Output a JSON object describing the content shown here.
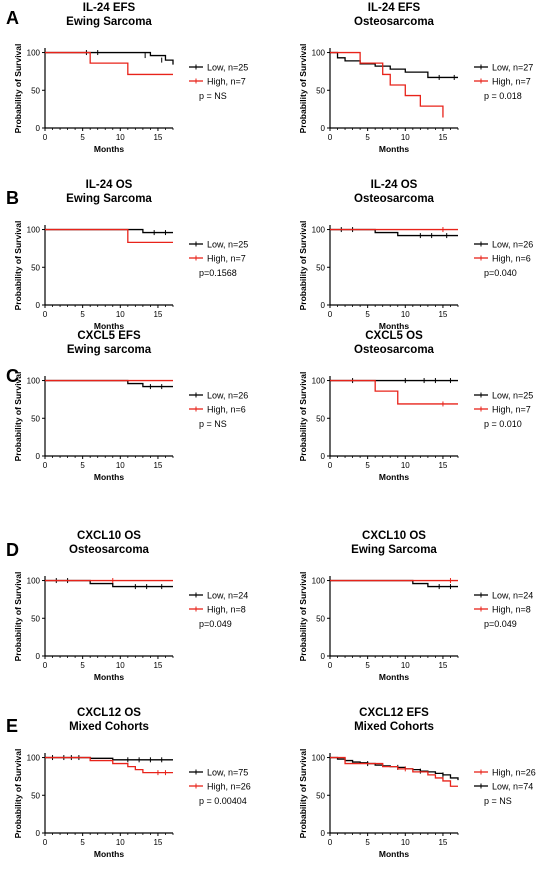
{
  "colors": {
    "low": "#000000",
    "high": "#e8231a",
    "axis": "#000000"
  },
  "chart_data": [
    {
      "panel_letter": "A",
      "type": "line",
      "title": "IL-24 EFS",
      "subtitle": "Ewing Sarcoma",
      "xlabel": "Months",
      "ylabel": "Probability of Survival",
      "xlim": [
        0,
        17
      ],
      "ylim": [
        0,
        110
      ],
      "xticks": [
        "0",
        "5",
        "10",
        "15"
      ],
      "yticks": [
        "0",
        "50",
        "100"
      ],
      "legend_order": [
        "low",
        "high"
      ],
      "pvalue": "p = NS",
      "series": [
        {
          "key": "low",
          "name": "Low, n=25",
          "x": [
            0,
            13,
            14,
            15,
            16,
            17
          ],
          "y": [
            100,
            100,
            96,
            96,
            90,
            84
          ],
          "censor": [
            [
              5.5,
              100
            ],
            [
              7,
              100
            ],
            [
              13.3,
              96
            ],
            [
              15.5,
              90
            ]
          ]
        },
        {
          "key": "high",
          "name": "High, n=7",
          "x": [
            0,
            6,
            11,
            17
          ],
          "y": [
            100,
            86,
            71,
            71
          ],
          "censor": []
        }
      ]
    },
    {
      "panel_letter": "",
      "type": "line",
      "title": "IL-24 EFS",
      "subtitle": "Osteosarcoma",
      "xlabel": "Months",
      "ylabel": "Probability of Survival",
      "xlim": [
        0,
        17
      ],
      "ylim": [
        0,
        110
      ],
      "xticks": [
        "0",
        "5",
        "10",
        "15"
      ],
      "yticks": [
        "0",
        "50",
        "100"
      ],
      "legend_order": [
        "low",
        "high"
      ],
      "pvalue": "p = 0.018",
      "series": [
        {
          "key": "low",
          "name": "Low, n=27",
          "x": [
            0,
            1,
            2,
            4,
            6,
            8,
            10,
            13,
            17
          ],
          "y": [
            100,
            93,
            89,
            85,
            82,
            78,
            74,
            67,
            67
          ],
          "censor": [
            [
              14.5,
              67
            ],
            [
              16.5,
              67
            ]
          ]
        },
        {
          "key": "high",
          "name": "High, n=7",
          "x": [
            0,
            4,
            6,
            7,
            8,
            10,
            12,
            15
          ],
          "y": [
            100,
            86,
            86,
            71,
            57,
            43,
            29,
            14
          ],
          "censor": []
        }
      ]
    },
    {
      "panel_letter": "B",
      "type": "line",
      "title": "IL-24 OS",
      "subtitle": "Ewing  Sarcoma",
      "xlabel": "Months",
      "ylabel": "Probability of Survival",
      "xlim": [
        0,
        17
      ],
      "ylim": [
        0,
        110
      ],
      "xticks": [
        "0",
        "5",
        "10",
        "15"
      ],
      "yticks": [
        "0",
        "50",
        "100"
      ],
      "legend_order": [
        "low",
        "high"
      ],
      "pvalue": "p=0.1568",
      "series": [
        {
          "key": "low",
          "name": "Low, n=25",
          "x": [
            0,
            13,
            17
          ],
          "y": [
            100,
            96,
            96
          ],
          "censor": [
            [
              14.5,
              96
            ],
            [
              16,
              96
            ]
          ]
        },
        {
          "key": "high",
          "name": "High, n=7",
          "x": [
            0,
            11,
            17
          ],
          "y": [
            100,
            83,
            83
          ],
          "censor": []
        }
      ]
    },
    {
      "panel_letter": "",
      "type": "line",
      "title": "IL-24 OS",
      "subtitle": "Osteosarcoma",
      "xlabel": "Months",
      "ylabel": "Probability of Survival",
      "xlim": [
        0,
        17
      ],
      "ylim": [
        0,
        110
      ],
      "xticks": [
        "0",
        "5",
        "10",
        "15"
      ],
      "yticks": [
        "0",
        "50",
        "100"
      ],
      "legend_order": [
        "low",
        "high"
      ],
      "pvalue": "p=0.040",
      "series": [
        {
          "key": "low",
          "name": "Low, n=26",
          "x": [
            0,
            6,
            9,
            17
          ],
          "y": [
            100,
            96,
            92,
            92
          ],
          "censor": [
            [
              1.5,
              100
            ],
            [
              3,
              100
            ],
            [
              12,
              92
            ],
            [
              13.5,
              92
            ],
            [
              15.5,
              92
            ]
          ]
        },
        {
          "key": "high",
          "name": "High, n=6",
          "x": [
            0,
            17
          ],
          "y": [
            100,
            100
          ],
          "censor": [
            [
              15,
              100
            ]
          ]
        }
      ]
    },
    {
      "panel_letter": "C",
      "type": "line",
      "title": "CXCL5 EFS",
      "subtitle": "Ewing sarcoma",
      "xlabel": "Months",
      "ylabel": "Probability of Survival",
      "xlim": [
        0,
        17
      ],
      "ylim": [
        0,
        110
      ],
      "xticks": [
        "0",
        "5",
        "10",
        "15"
      ],
      "yticks": [
        "0",
        "50",
        "100"
      ],
      "legend_order": [
        "low",
        "high"
      ],
      "pvalue": "p = NS",
      "series": [
        {
          "key": "low",
          "name": "Low, n=26",
          "x": [
            0,
            11,
            13,
            17
          ],
          "y": [
            100,
            96,
            92,
            92
          ],
          "censor": [
            [
              14,
              92
            ],
            [
              15.5,
              92
            ]
          ]
        },
        {
          "key": "high",
          "name": "High, n=6",
          "x": [
            0,
            17
          ],
          "y": [
            100,
            100
          ],
          "censor": []
        }
      ]
    },
    {
      "panel_letter": "",
      "type": "line",
      "title": "CXCL5 OS",
      "subtitle": "Osteosarcoma",
      "xlabel": "Months",
      "ylabel": "Probability of Survival",
      "xlim": [
        0,
        17
      ],
      "ylim": [
        0,
        110
      ],
      "xticks": [
        "0",
        "5",
        "10",
        "15"
      ],
      "yticks": [
        "0",
        "50",
        "100"
      ],
      "legend_order": [
        "low",
        "high"
      ],
      "pvalue": "p = 0.010",
      "series": [
        {
          "key": "low",
          "name": "Low, n=25",
          "x": [
            0,
            17
          ],
          "y": [
            100,
            100
          ],
          "censor": [
            [
              3,
              100
            ],
            [
              10,
              100
            ],
            [
              12.5,
              100
            ],
            [
              14,
              100
            ],
            [
              16,
              100
            ]
          ]
        },
        {
          "key": "high",
          "name": "High, n=7",
          "x": [
            0,
            6,
            9,
            17
          ],
          "y": [
            100,
            86,
            69,
            69
          ],
          "censor": [
            [
              15,
              69
            ]
          ]
        }
      ]
    },
    {
      "panel_letter": "D",
      "type": "line",
      "title": "CXCL10 OS",
      "subtitle": "Osteosarcoma",
      "xlabel": "Months",
      "ylabel": "Probability of Survival",
      "xlim": [
        0,
        17
      ],
      "ylim": [
        0,
        110
      ],
      "xticks": [
        "0",
        "5",
        "10",
        "15"
      ],
      "yticks": [
        "0",
        "50",
        "100"
      ],
      "legend_order": [
        "low",
        "high"
      ],
      "pvalue": "p=0.049",
      "series": [
        {
          "key": "low",
          "name": "Low, n=24",
          "x": [
            0,
            6,
            9,
            17
          ],
          "y": [
            100,
            96,
            92,
            92
          ],
          "censor": [
            [
              1.5,
              100
            ],
            [
              3,
              100
            ],
            [
              12,
              92
            ],
            [
              13.5,
              92
            ],
            [
              15.5,
              92
            ]
          ]
        },
        {
          "key": "high",
          "name": "High, n=8",
          "x": [
            0,
            17
          ],
          "y": [
            100,
            100
          ],
          "censor": [
            [
              9,
              100
            ]
          ]
        }
      ]
    },
    {
      "panel_letter": "",
      "type": "line",
      "title": "CXCL10 OS",
      "subtitle": "Ewing Sarcoma",
      "xlabel": "Months",
      "ylabel": "Probability of Survival",
      "xlim": [
        0,
        17
      ],
      "ylim": [
        0,
        110
      ],
      "xticks": [
        "0",
        "5",
        "10",
        "15"
      ],
      "yticks": [
        "0",
        "50",
        "100"
      ],
      "legend_order": [
        "low",
        "high"
      ],
      "pvalue": "p=0.049",
      "series": [
        {
          "key": "low",
          "name": "Low, n=24",
          "x": [
            0,
            11,
            13,
            17
          ],
          "y": [
            100,
            96,
            92,
            92
          ],
          "censor": [
            [
              14.5,
              92
            ],
            [
              16,
              92
            ]
          ]
        },
        {
          "key": "high",
          "name": "High, n=8",
          "x": [
            0,
            17
          ],
          "y": [
            100,
            100
          ],
          "censor": [
            [
              16,
              100
            ]
          ]
        }
      ]
    },
    {
      "panel_letter": "E",
      "type": "line",
      "title": "CXCL12 OS",
      "subtitle": "Mixed Cohorts",
      "xlabel": "Months",
      "ylabel": "Probability of Survival",
      "xlim": [
        0,
        17
      ],
      "ylim": [
        0,
        110
      ],
      "xticks": [
        "0",
        "5",
        "10",
        "15"
      ],
      "yticks": [
        "0",
        "50",
        "100"
      ],
      "legend_order": [
        "low",
        "high"
      ],
      "pvalue": "p = 0.00404",
      "series": [
        {
          "key": "low",
          "name": "Low, n=75",
          "x": [
            0,
            5,
            6,
            9,
            17
          ],
          "y": [
            100,
            100,
            99,
            97,
            97
          ],
          "censor": [
            [
              1,
              100
            ],
            [
              2.5,
              100
            ],
            [
              3.5,
              100
            ],
            [
              4.5,
              100
            ],
            [
              11,
              97
            ],
            [
              12.5,
              97
            ],
            [
              14,
              97
            ],
            [
              15.5,
              97
            ]
          ]
        },
        {
          "key": "high",
          "name": "High, n=26",
          "x": [
            0,
            6,
            8,
            9,
            10,
            11,
            12,
            13,
            17
          ],
          "y": [
            100,
            96,
            96,
            92,
            92,
            88,
            84,
            80,
            80
          ],
          "censor": [
            [
              15,
              80
            ],
            [
              16,
              80
            ]
          ]
        }
      ]
    },
    {
      "panel_letter": "",
      "type": "line",
      "title": "CXCL12 EFS",
      "subtitle": "Mixed  Cohorts",
      "xlabel": "Months",
      "ylabel": "Probability of Survival",
      "xlim": [
        0,
        17
      ],
      "ylim": [
        0,
        110
      ],
      "xticks": [
        "0",
        "5",
        "10",
        "15"
      ],
      "yticks": [
        "0",
        "50",
        "100"
      ],
      "legend_order": [
        "high",
        "low"
      ],
      "pvalue": "p = NS",
      "series": [
        {
          "key": "low",
          "name": "Low, n=74",
          "x": [
            0,
            1,
            2,
            3,
            4,
            5,
            6,
            7,
            8,
            9,
            10,
            11,
            12,
            13,
            14,
            15,
            16,
            17
          ],
          "y": [
            100,
            98,
            96,
            94,
            93,
            92,
            90,
            89,
            88,
            87,
            85,
            84,
            82,
            81,
            79,
            77,
            73,
            70
          ],
          "censor": [
            [
              5,
              92
            ],
            [
              9,
              87
            ],
            [
              12,
              82
            ],
            [
              15,
              77
            ]
          ]
        },
        {
          "key": "high",
          "name": "High, n=26",
          "x": [
            0,
            2,
            5,
            7,
            9,
            11,
            13,
            14,
            15,
            16,
            17
          ],
          "y": [
            100,
            92,
            92,
            88,
            85,
            81,
            77,
            73,
            69,
            62,
            62
          ],
          "censor": [
            [
              10,
              85
            ]
          ]
        }
      ]
    }
  ]
}
